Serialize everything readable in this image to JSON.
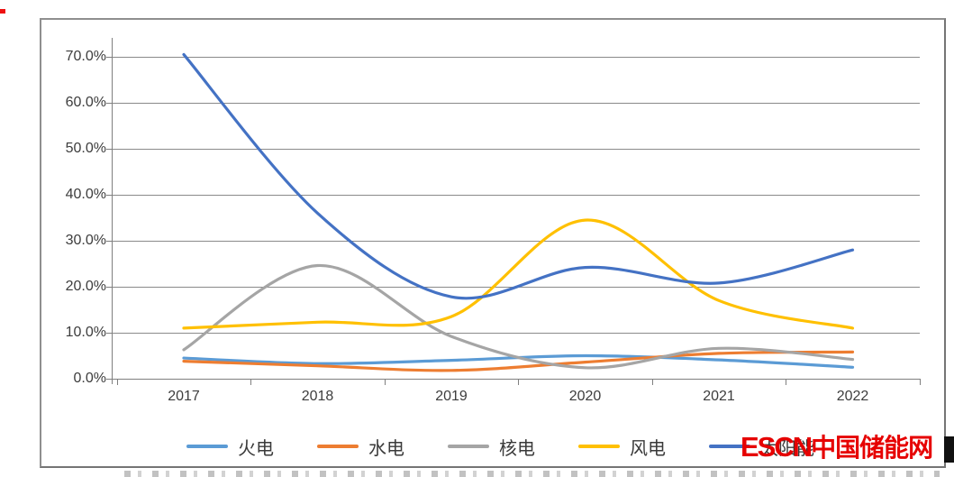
{
  "watermark": {
    "latin": "ESCN",
    "cjk": "中国储能网",
    "color": "#e60000"
  },
  "chart_data": {
    "type": "line",
    "smooth": true,
    "grid": true,
    "legend_position": "bottom",
    "categories": [
      "2017",
      "2018",
      "2019",
      "2020",
      "2021",
      "2022"
    ],
    "series": [
      {
        "name": "火电",
        "color": "#5B9BD5",
        "values": [
          4.5,
          3.3,
          4.0,
          5.0,
          4.1,
          2.5
        ]
      },
      {
        "name": "水电",
        "color": "#ED7D31",
        "values": [
          3.8,
          2.8,
          1.8,
          3.6,
          5.5,
          5.8
        ]
      },
      {
        "name": "核电",
        "color": "#A5A5A5",
        "values": [
          6.3,
          24.6,
          9.2,
          2.4,
          6.6,
          4.2
        ]
      },
      {
        "name": "风电",
        "color": "#FFC000",
        "values": [
          11.0,
          12.3,
          13.5,
          34.5,
          17.0,
          11.0
        ]
      },
      {
        "name": "太阳能",
        "color": "#4472C4",
        "values": [
          70.5,
          36.0,
          17.8,
          24.2,
          20.8,
          28.0
        ],
        "label_obscured_by_watermark": true
      }
    ],
    "y_ticks": [
      "70.0%",
      "60.0%",
      "50.0%",
      "40.0%",
      "30.0%",
      "20.0%",
      "10.0%",
      "0.0%"
    ],
    "ylim": [
      0,
      74
    ],
    "y_unit": "percent",
    "title": "",
    "xlabel": "",
    "ylabel": ""
  }
}
